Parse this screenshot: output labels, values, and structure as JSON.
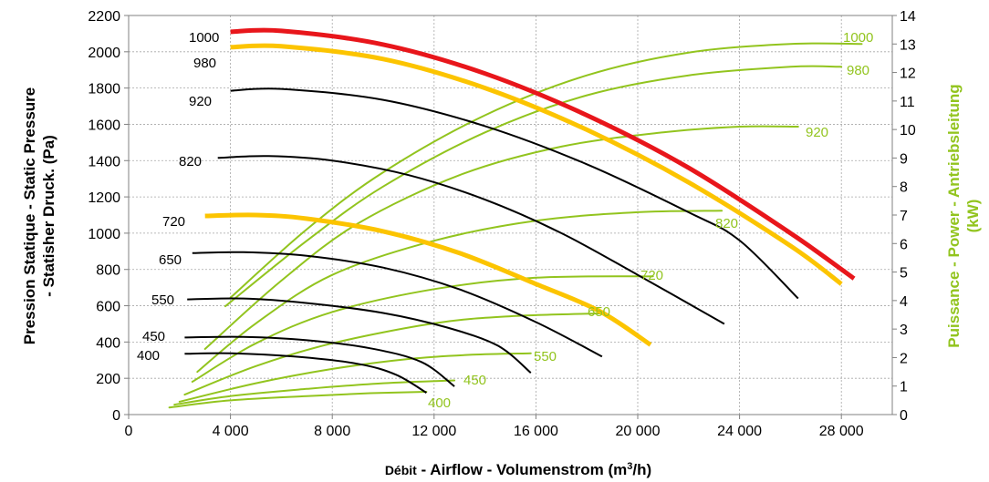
{
  "chart_data": {
    "type": "line",
    "title": "",
    "xlabel": "Débit - Airflow - Volumenstrom (m³/h)",
    "xlabel_parts": {
      "prefix": "Débit",
      "main": " - Airflow - Volumenstrom (m",
      "sup": "3",
      "suffix": "/h)"
    },
    "ylabel_left_line1": "Pression Statique - Static Pressure",
    "ylabel_left_line2": "- Statisher Druck. (Pa)",
    "ylabel_right_line1": "Puissance - Power - Antriebsleitung",
    "ylabel_right_line2": "(kW)",
    "xlim": [
      0,
      30000
    ],
    "ylim_left": [
      0,
      2200
    ],
    "ylim_right": [
      0,
      14
    ],
    "x_ticks": [
      0,
      4000,
      8000,
      12000,
      16000,
      20000,
      24000,
      28000
    ],
    "x_tick_labels": [
      "0",
      "4 000",
      "8 000",
      "12 000",
      "16 000",
      "20 000",
      "24 000",
      "28 000"
    ],
    "y_left_ticks": [
      0,
      200,
      400,
      600,
      800,
      1000,
      1200,
      1400,
      1600,
      1800,
      2000,
      2200
    ],
    "y_left_tick_labels": [
      "0",
      "200",
      "400",
      "600",
      "800",
      "1000",
      "1200",
      "1400",
      "1600",
      "1800",
      "2000",
      "2200"
    ],
    "y_right_ticks": [
      0,
      1,
      2,
      3,
      4,
      5,
      6,
      7,
      8,
      9,
      10,
      11,
      12,
      13,
      14
    ],
    "y_right_tick_labels": [
      "0",
      "1",
      "2",
      "3",
      "4",
      "5",
      "6",
      "7",
      "8",
      "9",
      "10",
      "11",
      "12",
      "13",
      "14"
    ],
    "grid": true,
    "colors": {
      "pressure": "#000000",
      "highlight_red": "#e8161b",
      "highlight_yellow": "#fcc400",
      "power": "#92c41e"
    },
    "pressure_series": [
      {
        "name": "1000",
        "color": "#e8161b",
        "width": 5,
        "points": [
          [
            4000,
            2110
          ],
          [
            6000,
            2115
          ],
          [
            10000,
            2040
          ],
          [
            14000,
            1880
          ],
          [
            18000,
            1650
          ],
          [
            22000,
            1360
          ],
          [
            26000,
            1000
          ],
          [
            28500,
            750
          ]
        ]
      },
      {
        "name": "980",
        "color": "#fcc400",
        "width": 5,
        "points": [
          [
            4000,
            2025
          ],
          [
            6000,
            2030
          ],
          [
            10000,
            1960
          ],
          [
            14000,
            1800
          ],
          [
            18000,
            1570
          ],
          [
            22000,
            1280
          ],
          [
            26000,
            930
          ],
          [
            28000,
            720
          ]
        ]
      },
      {
        "name": "920",
        "color": "#000000",
        "width": 2,
        "points": [
          [
            4000,
            1785
          ],
          [
            6000,
            1795
          ],
          [
            10000,
            1735
          ],
          [
            14000,
            1590
          ],
          [
            18000,
            1380
          ],
          [
            22000,
            1115
          ],
          [
            24000,
            960
          ],
          [
            26300,
            640
          ]
        ]
      },
      {
        "name": "820",
        "color": "#000000",
        "width": 2,
        "points": [
          [
            3500,
            1415
          ],
          [
            5500,
            1425
          ],
          [
            8000,
            1400
          ],
          [
            11000,
            1320
          ],
          [
            14000,
            1185
          ],
          [
            17000,
            1000
          ],
          [
            20000,
            770
          ],
          [
            23400,
            500
          ]
        ]
      },
      {
        "name": "720",
        "color": "#fcc400",
        "width": 5,
        "points": [
          [
            3000,
            1095
          ],
          [
            5000,
            1100
          ],
          [
            7000,
            1080
          ],
          [
            10000,
            1010
          ],
          [
            13000,
            890
          ],
          [
            16000,
            720
          ],
          [
            18500,
            570
          ],
          [
            20500,
            385
          ]
        ]
      },
      {
        "name": "650",
        "color": "#000000",
        "width": 2,
        "points": [
          [
            2500,
            890
          ],
          [
            4500,
            895
          ],
          [
            7000,
            875
          ],
          [
            10000,
            810
          ],
          [
            13000,
            690
          ],
          [
            16000,
            510
          ],
          [
            18600,
            320
          ]
        ]
      },
      {
        "name": "550",
        "color": "#000000",
        "width": 2,
        "points": [
          [
            2300,
            635
          ],
          [
            4500,
            640
          ],
          [
            7000,
            615
          ],
          [
            10000,
            560
          ],
          [
            12500,
            480
          ],
          [
            14500,
            380
          ],
          [
            15800,
            230
          ]
        ]
      },
      {
        "name": "450",
        "color": "#000000",
        "width": 2,
        "points": [
          [
            2200,
            425
          ],
          [
            4500,
            428
          ],
          [
            7000,
            410
          ],
          [
            9500,
            365
          ],
          [
            11500,
            290
          ],
          [
            12800,
            155
          ]
        ]
      },
      {
        "name": "400",
        "color": "#000000",
        "width": 2,
        "points": [
          [
            2200,
            335
          ],
          [
            4000,
            338
          ],
          [
            6500,
            320
          ],
          [
            9000,
            280
          ],
          [
            10500,
            220
          ],
          [
            11700,
            120
          ]
        ]
      }
    ],
    "power_series": [
      {
        "name": "1000",
        "points": [
          [
            4000,
            4.1
          ],
          [
            7000,
            6.5
          ],
          [
            10000,
            8.5
          ],
          [
            14000,
            10.5
          ],
          [
            18000,
            11.9
          ],
          [
            22000,
            12.7
          ],
          [
            26000,
            13.0
          ],
          [
            28800,
            13.0
          ]
        ]
      },
      {
        "name": "980",
        "points": [
          [
            3800,
            3.8
          ],
          [
            7000,
            6.1
          ],
          [
            10000,
            8.0
          ],
          [
            14000,
            9.9
          ],
          [
            18000,
            11.2
          ],
          [
            22000,
            11.9
          ],
          [
            26000,
            12.2
          ],
          [
            28000,
            12.2
          ]
        ]
      },
      {
        "name": "920",
        "points": [
          [
            3000,
            2.3
          ],
          [
            6000,
            4.7
          ],
          [
            9000,
            6.7
          ],
          [
            13000,
            8.4
          ],
          [
            17000,
            9.4
          ],
          [
            21000,
            9.9
          ],
          [
            24000,
            10.1
          ],
          [
            26300,
            10.1
          ]
        ]
      },
      {
        "name": "820",
        "points": [
          [
            2700,
            1.5
          ],
          [
            5000,
            3.2
          ],
          [
            8000,
            4.9
          ],
          [
            12000,
            6.1
          ],
          [
            16000,
            6.8
          ],
          [
            20000,
            7.1
          ],
          [
            23300,
            7.15
          ]
        ]
      },
      {
        "name": "720",
        "points": [
          [
            2500,
            1.15
          ],
          [
            5000,
            2.5
          ],
          [
            8000,
            3.6
          ],
          [
            12000,
            4.4
          ],
          [
            16000,
            4.8
          ],
          [
            20600,
            4.85
          ]
        ]
      },
      {
        "name": "650",
        "points": [
          [
            2200,
            0.7
          ],
          [
            5000,
            1.7
          ],
          [
            8000,
            2.5
          ],
          [
            12000,
            3.2
          ],
          [
            15000,
            3.45
          ],
          [
            18600,
            3.55
          ]
        ]
      },
      {
        "name": "550",
        "points": [
          [
            2000,
            0.45
          ],
          [
            5000,
            1.1
          ],
          [
            8000,
            1.6
          ],
          [
            11000,
            1.95
          ],
          [
            13500,
            2.1
          ],
          [
            15800,
            2.15
          ]
        ]
      },
      {
        "name": "450",
        "points": [
          [
            1800,
            0.35
          ],
          [
            4000,
            0.65
          ],
          [
            7000,
            0.9
          ],
          [
            10000,
            1.1
          ],
          [
            12800,
            1.2
          ]
        ]
      },
      {
        "name": "400",
        "points": [
          [
            1600,
            0.25
          ],
          [
            4000,
            0.5
          ],
          [
            7000,
            0.65
          ],
          [
            9500,
            0.75
          ],
          [
            11700,
            0.8
          ]
        ]
      }
    ]
  }
}
